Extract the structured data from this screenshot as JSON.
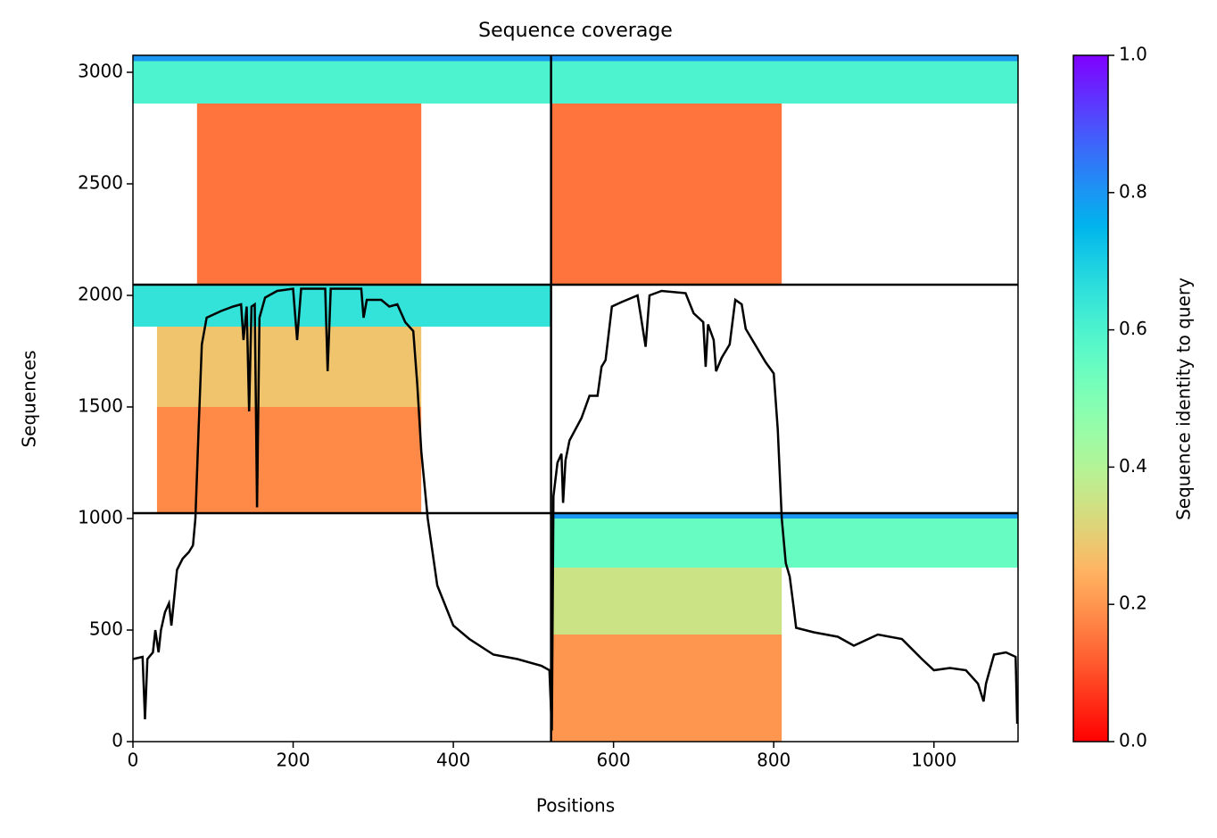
{
  "chart_data": {
    "type": "coverage",
    "title": "Sequence coverage",
    "x_label": "Positions",
    "y_label": "Sequences",
    "xlim": [
      0,
      1105
    ],
    "ylim": [
      0,
      3076
    ],
    "xticks": [
      0,
      200,
      400,
      600,
      800,
      1000
    ],
    "yticks": [
      0,
      500,
      1000,
      1500,
      2000,
      2500,
      3000
    ],
    "x_boundaries": [
      522
    ],
    "y_boundaries": [
      1024,
      2048
    ],
    "blocks": [
      {
        "x": [
          0,
          522
        ],
        "y": [
          2860,
          3076
        ],
        "identity": 0.6
      },
      {
        "x": [
          0,
          522
        ],
        "y": [
          3050,
          3076
        ],
        "identity": 0.8
      },
      {
        "x": [
          80,
          360
        ],
        "y": [
          2048,
          2860
        ],
        "identity": 0.15
      },
      {
        "x": [
          522,
          1105
        ],
        "y": [
          2860,
          3076
        ],
        "identity": 0.6
      },
      {
        "x": [
          522,
          1105
        ],
        "y": [
          3050,
          3076
        ],
        "identity": 0.8
      },
      {
        "x": [
          522,
          810
        ],
        "y": [
          2048,
          2860
        ],
        "identity": 0.15
      },
      {
        "x": [
          0,
          522
        ],
        "y": [
          1860,
          2048
        ],
        "identity": 0.65
      },
      {
        "x": [
          30,
          360
        ],
        "y": [
          1500,
          1860
        ],
        "identity": 0.28
      },
      {
        "x": [
          30,
          360
        ],
        "y": [
          1024,
          1500
        ],
        "identity": 0.18
      },
      {
        "x": [
          522,
          1105
        ],
        "y": [
          780,
          1024
        ],
        "identity": 0.55
      },
      {
        "x": [
          522,
          1105
        ],
        "y": [
          1000,
          1024
        ],
        "identity": 0.8
      },
      {
        "x": [
          522,
          810
        ],
        "y": [
          480,
          780
        ],
        "identity": 0.35
      },
      {
        "x": [
          522,
          810
        ],
        "y": [
          0,
          480
        ],
        "identity": 0.2
      }
    ],
    "coverage": {
      "x": [
        0,
        12,
        15,
        18,
        25,
        28,
        32,
        35,
        40,
        45,
        48,
        55,
        62,
        70,
        75,
        78,
        82,
        86,
        92,
        110,
        125,
        135,
        138,
        142,
        145,
        148,
        152,
        155,
        158,
        165,
        180,
        200,
        205,
        210,
        240,
        243,
        247,
        285,
        288,
        292,
        310,
        320,
        330,
        340,
        350,
        355,
        360,
        368,
        380,
        400,
        420,
        450,
        480,
        510,
        520,
        523,
        525,
        530,
        535,
        537,
        540,
        545,
        560,
        570,
        580,
        585,
        590,
        598,
        610,
        630,
        640,
        645,
        660,
        690,
        700,
        712,
        715,
        718,
        722,
        725,
        728,
        735,
        745,
        752,
        760,
        765,
        780,
        790,
        800,
        805,
        810,
        815,
        820,
        825,
        828,
        850,
        880,
        900,
        930,
        960,
        985,
        1000,
        1020,
        1040,
        1055,
        1062,
        1065,
        1075,
        1090,
        1102,
        1104
      ],
      "values": [
        370,
        380,
        100,
        370,
        400,
        500,
        400,
        500,
        580,
        620,
        520,
        770,
        820,
        850,
        880,
        1000,
        1400,
        1780,
        1900,
        1930,
        1950,
        1960,
        1800,
        1950,
        1480,
        1950,
        1960,
        1050,
        1900,
        1990,
        2020,
        2030,
        1800,
        2030,
        2030,
        1660,
        2030,
        2030,
        1900,
        1980,
        1980,
        1950,
        1960,
        1880,
        1840,
        1600,
        1300,
        1000,
        700,
        520,
        460,
        390,
        370,
        340,
        320,
        50,
        1100,
        1250,
        1290,
        1070,
        1260,
        1350,
        1450,
        1550,
        1550,
        1680,
        1710,
        1950,
        1970,
        2000,
        1770,
        2000,
        2020,
        2010,
        1920,
        1880,
        1680,
        1870,
        1830,
        1800,
        1660,
        1720,
        1780,
        1980,
        1960,
        1850,
        1760,
        1700,
        1650,
        1400,
        1000,
        800,
        740,
        600,
        510,
        490,
        470,
        430,
        480,
        460,
        370,
        320,
        330,
        320,
        260,
        180,
        260,
        390,
        400,
        380,
        80
      ]
    },
    "colorbar": {
      "label": "Sequence identity to query",
      "lim": [
        0,
        1
      ],
      "ticks": [
        {
          "value": 0,
          "label": "0.0"
        },
        0.2,
        0.4,
        0.6,
        0.8,
        {
          "value": 1,
          "label": "1.0"
        }
      ]
    }
  }
}
